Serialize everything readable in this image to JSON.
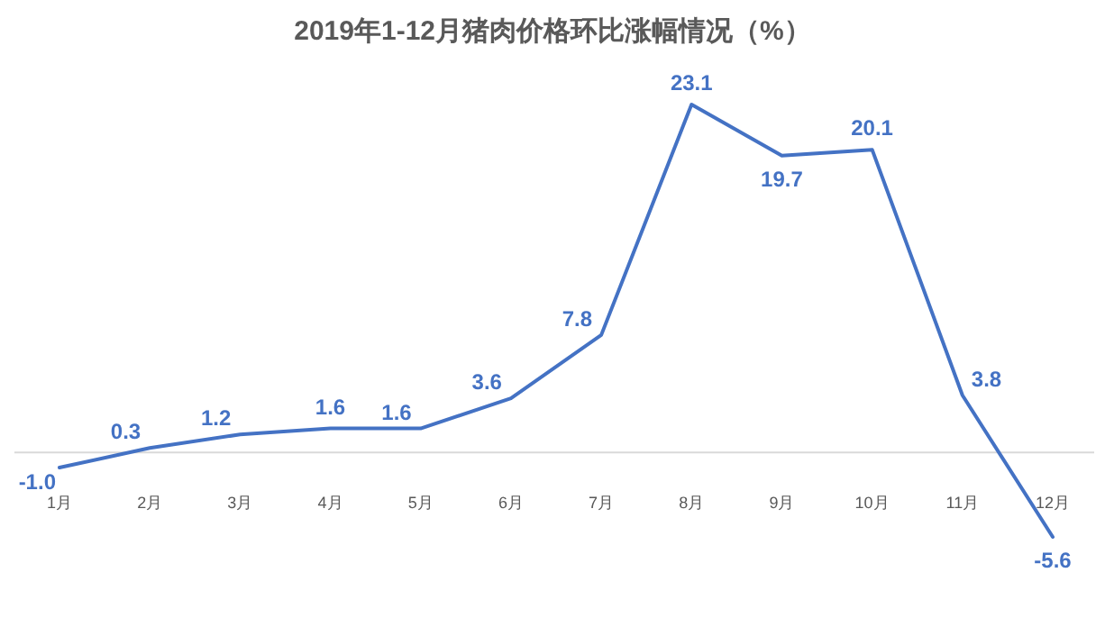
{
  "chart_data": {
    "type": "line",
    "title": "2019年1-12月猪肉价格环比涨幅情况（%）",
    "categories": [
      "1月",
      "2月",
      "3月",
      "4月",
      "5月",
      "6月",
      "7月",
      "8月",
      "9月",
      "10月",
      "11月",
      "12月"
    ],
    "series": [
      {
        "color": "#4472c4",
        "values": [
          -1.0,
          0.3,
          1.2,
          1.6,
          1.6,
          3.6,
          7.8,
          23.1,
          19.7,
          20.1,
          3.8,
          -5.6
        ],
        "value_labels": [
          "-1.0",
          "0.3",
          "1.2",
          "1.6",
          "1.6",
          "3.6",
          "7.8",
          "23.1",
          "19.7",
          "20.1",
          "3.8",
          "-5.6"
        ]
      }
    ],
    "marker": "none",
    "grid": false
  }
}
